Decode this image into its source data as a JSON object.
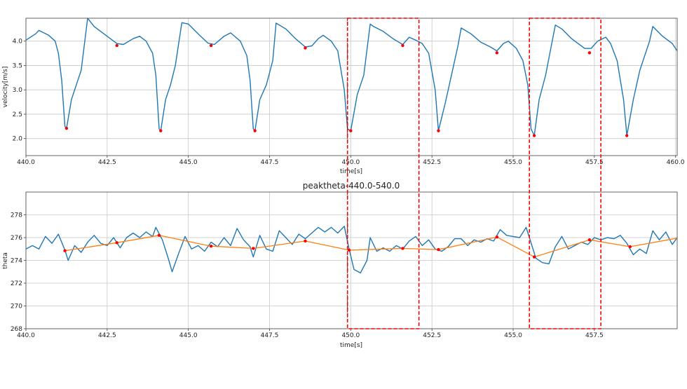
{
  "chart_data": [
    {
      "type": "line",
      "xlabel": "time[s]",
      "ylabel": "velocity[m/s]",
      "xlim": [
        440,
        460.05
      ],
      "ylim": [
        1.65,
        4.47
      ],
      "xticks": [
        "440.0",
        "442.5",
        "445.0",
        "447.5",
        "450.0",
        "452.5",
        "455.0",
        "457.5",
        "460.0"
      ],
      "yticks": [
        "2.0",
        "2.5",
        "3.0",
        "3.5",
        "4.0"
      ],
      "grid": true,
      "colors": {
        "signal": "#1f77b4",
        "markers": "#ff0000",
        "marker_line": "#000000",
        "region": "#ff0000"
      },
      "series": [
        {
          "x": [
            440,
            440.3,
            440.4,
            440.7,
            440.9,
            441.0,
            441.1,
            441.2,
            441.25,
            441.4,
            441.55,
            441.7,
            441.9,
            442.1,
            442.5,
            442.8,
            443.0,
            443.3,
            443.5,
            443.7,
            443.9,
            444.0,
            444.1,
            444.15,
            444.3,
            444.45,
            444.6,
            444.8,
            445.0,
            445.3,
            445.6,
            445.8,
            446.1,
            446.3,
            446.6,
            446.8,
            446.9,
            447.0,
            447.05,
            447.2,
            447.4,
            447.6,
            447.7,
            448.0,
            448.3,
            448.6,
            448.8,
            449.0,
            449.15,
            449.4,
            449.6,
            449.8,
            449.9,
            450.0,
            450.2,
            450.4,
            450.6,
            450.7,
            451.0,
            451.3,
            451.6,
            451.8,
            452.0,
            452.2,
            452.4,
            452.6,
            452.7,
            452.9,
            453.1,
            453.3,
            453.4,
            453.7,
            454.0,
            454.3,
            454.5,
            454.7,
            454.85,
            455.1,
            455.3,
            455.45,
            455.55,
            455.65,
            455.8,
            456.0,
            456.3,
            456.5,
            456.8,
            457.2,
            457.4,
            457.6,
            457.85,
            458.0,
            458.2,
            458.4,
            458.5,
            458.7,
            458.9,
            459.2,
            459.3,
            459.6,
            459.9,
            460.05
          ],
          "y": [
            4.02,
            4.15,
            4.22,
            4.12,
            4.0,
            3.75,
            3.2,
            2.25,
            2.21,
            2.8,
            3.1,
            3.4,
            4.47,
            4.3,
            4.1,
            3.95,
            3.93,
            4.05,
            4.1,
            4.0,
            3.75,
            3.3,
            2.2,
            2.16,
            2.8,
            3.1,
            3.5,
            4.38,
            4.35,
            4.15,
            3.96,
            3.93,
            4.1,
            4.17,
            4.0,
            3.7,
            3.2,
            2.2,
            2.16,
            2.8,
            3.1,
            3.6,
            4.37,
            4.25,
            4.05,
            3.88,
            3.9,
            4.05,
            4.12,
            4.0,
            3.8,
            3.0,
            2.2,
            2.16,
            2.9,
            3.3,
            4.35,
            4.3,
            4.2,
            4.05,
            3.93,
            4.08,
            4.02,
            3.95,
            3.75,
            3.0,
            2.16,
            2.7,
            3.3,
            3.9,
            4.27,
            4.15,
            3.98,
            3.88,
            3.8,
            3.95,
            4.0,
            3.85,
            3.6,
            3.1,
            2.2,
            2.06,
            2.8,
            3.3,
            4.33,
            4.25,
            4.05,
            3.85,
            3.85,
            4.0,
            4.08,
            3.95,
            3.6,
            2.8,
            2.06,
            2.8,
            3.4,
            4.0,
            4.3,
            4.1,
            3.95,
            3.8
          ]
        }
      ],
      "markers": {
        "x": [
          441.25,
          442.8,
          444.15,
          445.7,
          447.05,
          448.6,
          450.0,
          451.6,
          452.7,
          454.5,
          455.65,
          457.35,
          458.5
        ],
        "y": [
          2.21,
          3.91,
          2.16,
          3.91,
          2.16,
          3.86,
          2.16,
          3.91,
          2.16,
          3.76,
          2.06,
          3.76,
          2.06
        ]
      },
      "marker_line_x": 449.9,
      "regions": [
        [
          449.9,
          452.1
        ],
        [
          455.5,
          457.7
        ]
      ]
    },
    {
      "type": "line",
      "title": "peaktheta-440.0-540.0",
      "xlabel": "time[s]",
      "ylabel": "theta",
      "xlim": [
        440,
        460.05
      ],
      "ylim": [
        268,
        280
      ],
      "xticks": [
        "440.0",
        "442.5",
        "445.0",
        "447.5",
        "450.0",
        "452.5",
        "455.0",
        "457.5"
      ],
      "yticks": [
        "268",
        "270",
        "272",
        "274",
        "276",
        "278"
      ],
      "grid": true,
      "colors": {
        "signal": "#1f77b4",
        "peak_line": "#ff7f0e",
        "markers": "#ff0000",
        "marker_line": "#000000",
        "region": "#ff0000"
      },
      "series": [
        {
          "x": [
            440,
            440.2,
            440.4,
            440.6,
            440.8,
            441.0,
            441.2,
            441.3,
            441.5,
            441.7,
            441.9,
            442.1,
            442.3,
            442.5,
            442.7,
            442.9,
            443.1,
            443.3,
            443.5,
            443.7,
            443.9,
            444.0,
            444.2,
            444.4,
            444.5,
            444.7,
            444.9,
            445.1,
            445.3,
            445.5,
            445.7,
            445.9,
            446.1,
            446.3,
            446.5,
            446.7,
            446.9,
            447.0,
            447.2,
            447.4,
            447.6,
            447.8,
            448.0,
            448.2,
            448.4,
            448.6,
            448.8,
            449.0,
            449.2,
            449.4,
            449.6,
            449.8,
            449.95,
            450.1,
            450.3,
            450.5,
            450.6,
            450.8,
            451.0,
            451.2,
            451.4,
            451.6,
            451.8,
            452.0,
            452.2,
            452.4,
            452.6,
            452.8,
            453.0,
            453.2,
            453.4,
            453.6,
            453.8,
            454.0,
            454.2,
            454.4,
            454.6,
            454.8,
            455.0,
            455.2,
            455.4,
            455.5,
            455.7,
            455.9,
            456.1,
            456.3,
            456.5,
            456.7,
            456.9,
            457.1,
            457.3,
            457.5,
            457.7,
            457.9,
            458.1,
            458.3,
            458.5,
            458.7,
            458.9,
            459.1,
            459.3,
            459.5,
            459.7,
            459.9,
            460.05
          ],
          "y": [
            275.0,
            275.3,
            275.0,
            276.1,
            275.5,
            276.3,
            274.9,
            274.0,
            275.3,
            274.7,
            275.6,
            276.2,
            275.5,
            275.3,
            276.0,
            275.1,
            276.0,
            276.4,
            276.0,
            276.5,
            276.1,
            276.9,
            275.8,
            274.0,
            273.0,
            274.6,
            276.1,
            275.0,
            275.3,
            274.8,
            275.6,
            275.2,
            276.0,
            275.3,
            276.8,
            275.8,
            275.2,
            274.3,
            276.2,
            275.0,
            274.8,
            276.6,
            276.0,
            275.4,
            276.3,
            275.9,
            276.4,
            276.9,
            276.5,
            276.9,
            276.4,
            277.0,
            275.0,
            273.2,
            272.9,
            274.0,
            276.0,
            274.8,
            275.1,
            274.8,
            275.3,
            275.0,
            275.7,
            276.1,
            275.3,
            275.8,
            275.0,
            274.8,
            275.2,
            275.9,
            275.9,
            275.3,
            275.8,
            275.6,
            275.9,
            275.7,
            276.7,
            276.2,
            276.1,
            276.0,
            276.9,
            276.0,
            274.2,
            273.8,
            273.7,
            275.2,
            276.1,
            275.0,
            275.3,
            275.6,
            275.4,
            276.0,
            275.8,
            276.0,
            275.9,
            276.2,
            275.5,
            274.5,
            275.0,
            274.6,
            276.6,
            275.8,
            276.5,
            275.4,
            276.0
          ]
        },
        {
          "x": [
            441.2,
            442.8,
            444.1,
            445.7,
            447.0,
            448.6,
            449.95,
            451.6,
            452.7,
            454.5,
            455.65,
            457.35,
            458.6,
            460.05
          ],
          "y": [
            274.85,
            275.55,
            276.2,
            275.25,
            275.05,
            275.7,
            274.9,
            275.05,
            274.95,
            276.05,
            274.3,
            275.8,
            275.2,
            275.95
          ]
        }
      ],
      "markers": {
        "x": [
          441.2,
          442.8,
          444.1,
          445.7,
          447.0,
          448.6,
          449.95,
          451.6,
          452.7,
          454.5,
          455.65,
          457.35,
          458.6
        ],
        "y": [
          274.85,
          275.55,
          276.2,
          275.25,
          275.05,
          275.7,
          274.9,
          275.05,
          274.95,
          276.05,
          274.3,
          275.8,
          275.2
        ]
      },
      "marker_line_x": 449.9,
      "regions": [
        [
          449.9,
          452.1
        ],
        [
          455.5,
          457.7
        ]
      ]
    }
  ]
}
